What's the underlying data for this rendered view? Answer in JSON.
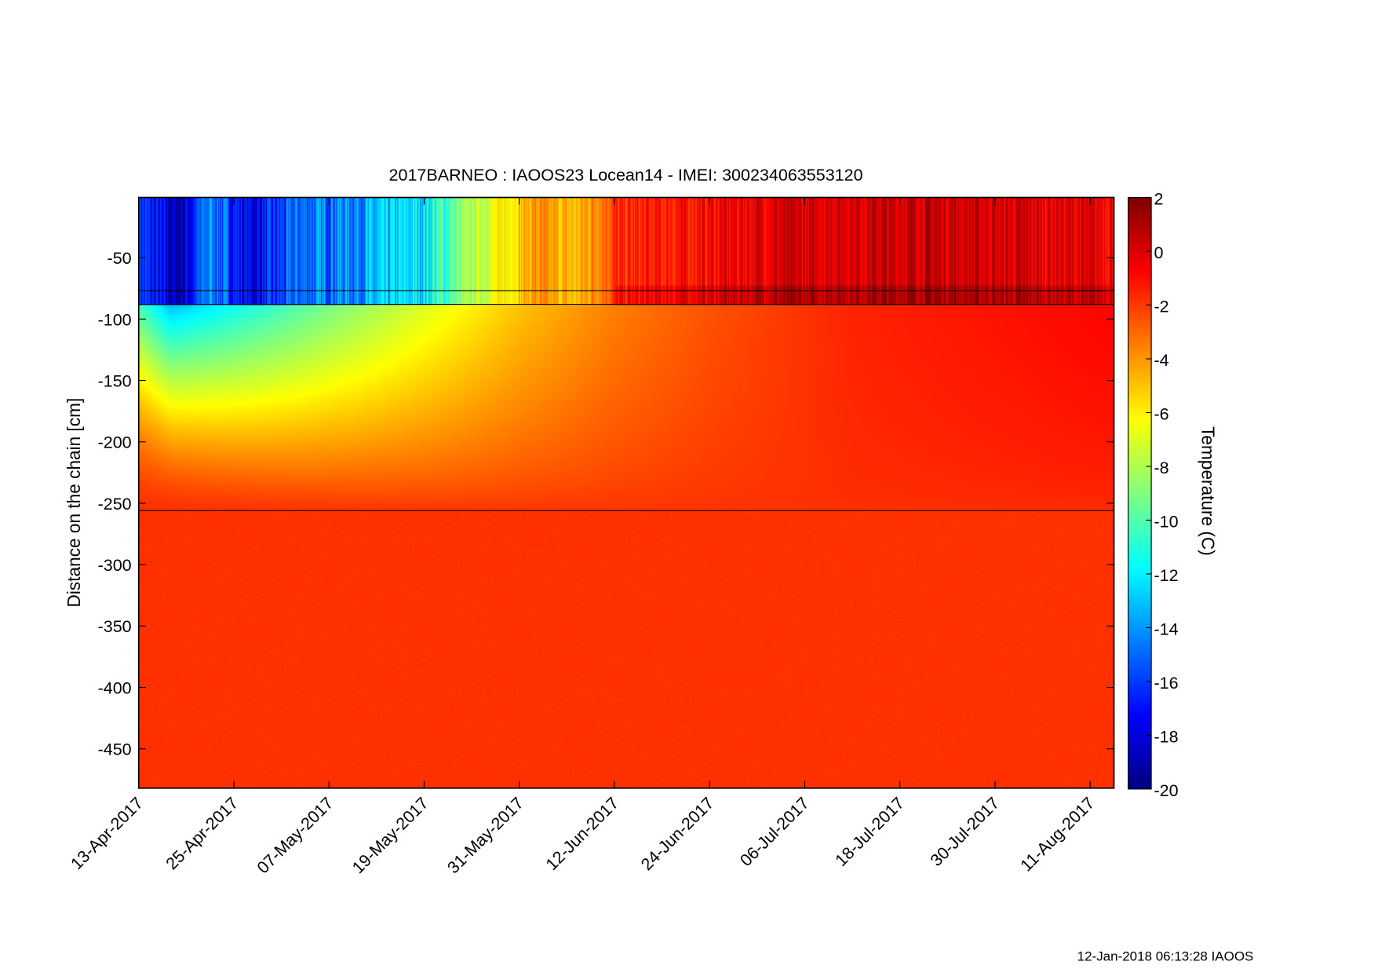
{
  "chart_data": {
    "type": "heatmap",
    "title": "2017BARNEO : IAOOS23  Locean14 - IMEI: 300234063553120",
    "xlabel": "",
    "ylabel": "Distance on the chain [cm]",
    "colorbar_label": "Temperature (C)",
    "x_start": "13-Apr-2017",
    "x_range_days": [
      0,
      123
    ],
    "x_ticks": [
      {
        "label": "13-Apr-2017",
        "day": 0
      },
      {
        "label": "25-Apr-2017",
        "day": 12
      },
      {
        "label": "07-May-2017",
        "day": 24
      },
      {
        "label": "19-May-2017",
        "day": 36
      },
      {
        "label": "31-May-2017",
        "day": 48
      },
      {
        "label": "12-Jun-2017",
        "day": 60
      },
      {
        "label": "24-Jun-2017",
        "day": 72
      },
      {
        "label": "06-Jul-2017",
        "day": 84
      },
      {
        "label": "18-Jul-2017",
        "day": 96
      },
      {
        "label": "30-Jul-2017",
        "day": 108
      },
      {
        "label": "11-Aug-2017",
        "day": 120
      }
    ],
    "ylim": [
      -482,
      -1
    ],
    "y_ticks": [
      -50,
      -100,
      -150,
      -200,
      -250,
      -300,
      -350,
      -400,
      -450
    ],
    "y_tick_labels": [
      "-50",
      "-100",
      "-150",
      "-200",
      "-250",
      "-300",
      "-350",
      "-400",
      "-450"
    ],
    "clim": [
      -20,
      2
    ],
    "colorbar_ticks": [
      2,
      0,
      -2,
      -4,
      -6,
      -8,
      -10,
      -12,
      -14,
      -16,
      -18,
      -20
    ],
    "colorbar_tick_labels": [
      "2",
      "0",
      "-2",
      "-4",
      "-6",
      "-8",
      "-10",
      "-12",
      "-14",
      "-16",
      "-18",
      "-20"
    ],
    "colormap": "jet",
    "horizontal_lines": [
      -77,
      -88,
      -256
    ],
    "surface_temperature_by_day": [
      [
        0,
        -16
      ],
      [
        5,
        -19
      ],
      [
        9,
        -14
      ],
      [
        14,
        -18
      ],
      [
        20,
        -15
      ],
      [
        28,
        -14
      ],
      [
        36,
        -12
      ],
      [
        42,
        -8
      ],
      [
        46,
        -6
      ],
      [
        50,
        -4
      ],
      [
        55,
        -5
      ],
      [
        60,
        -2
      ],
      [
        70,
        -1
      ],
      [
        80,
        0
      ],
      [
        100,
        0.5
      ],
      [
        123,
        -0.5
      ]
    ],
    "ice_top_temperature_by_day": [
      [
        0,
        -14
      ],
      [
        10,
        -12
      ],
      [
        25,
        -9
      ],
      [
        36,
        -7
      ],
      [
        48,
        -5
      ],
      [
        60,
        -3.5
      ],
      [
        72,
        -2.5
      ],
      [
        90,
        -1.5
      ],
      [
        123,
        -0.8
      ]
    ],
    "water_temperature": -1.8
  },
  "footer": "12-Jan-2018 06:13:28 IAOOS"
}
